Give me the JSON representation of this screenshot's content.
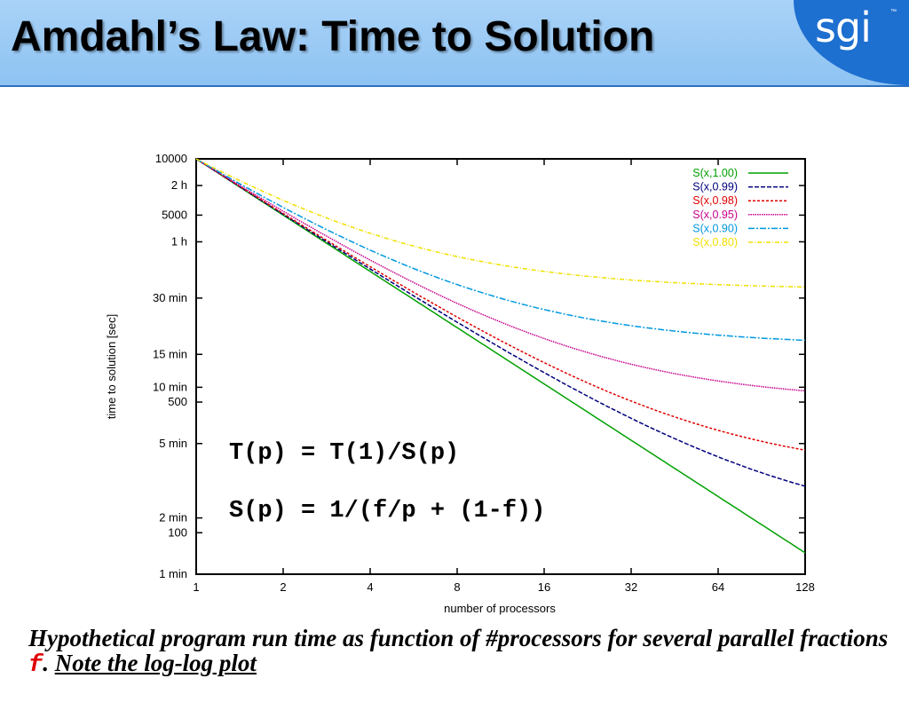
{
  "slide": {
    "title": "Amdahl’s Law: Time to Solution",
    "logo": "sgi",
    "logo_tm": "™"
  },
  "chart_data": {
    "type": "line",
    "xscale": "log2",
    "yscale": "log",
    "xlabel": "number of processors",
    "ylabel": "time to solution [sec]",
    "xlim": [
      1,
      128
    ],
    "ylim": [
      60,
      10000
    ],
    "xticks": [
      1,
      2,
      4,
      8,
      16,
      32,
      64,
      128
    ],
    "xtick_labels": [
      "1",
      "2",
      "4",
      "8",
      "16",
      "32",
      "64",
      "128"
    ],
    "yticks": [
      {
        "value": 10000,
        "label": "10000"
      },
      {
        "value": 7200,
        "label": "2 h"
      },
      {
        "value": 5000,
        "label": "5000"
      },
      {
        "value": 3600,
        "label": "1 h"
      },
      {
        "value": 1800,
        "label": "30 min"
      },
      {
        "value": 900,
        "label": "15 min"
      },
      {
        "value": 600,
        "label": "10 min"
      },
      {
        "value": 500,
        "label": "500"
      },
      {
        "value": 300,
        "label": "5 min"
      },
      {
        "value": 120,
        "label": "2 min"
      },
      {
        "value": 100,
        "label": "100"
      },
      {
        "value": 60,
        "label": "1 min"
      }
    ],
    "t1": 10000,
    "legend_position": "top-right",
    "series": [
      {
        "name": "S(x,1.00)",
        "f": 1.0,
        "color": "#00a000",
        "dash": "",
        "values": [
          10000,
          5000,
          2500,
          1250,
          625,
          312.5,
          156.3,
          78.1
        ]
      },
      {
        "name": "S(x,0.99)",
        "f": 0.99,
        "color": "#00007f",
        "dash": "5,2",
        "values": [
          10000,
          5050,
          2575,
          1338,
          719,
          409,
          255,
          177
        ]
      },
      {
        "name": "S(x,0.98)",
        "f": 0.98,
        "color": "#e00000",
        "dash": "3,2",
        "values": [
          10000,
          5100,
          2650,
          1425,
          813,
          506,
          353,
          277
        ]
      },
      {
        "name": "S(x,0.95)",
        "f": 0.95,
        "color": "#c8008c",
        "dash": "1.5,1",
        "values": [
          10000,
          5250,
          2875,
          1688,
          1094,
          797,
          648,
          574
        ]
      },
      {
        "name": "S(x,0.90)",
        "f": 0.9,
        "color": "#0098e0",
        "dash": "7,2,2,2",
        "values": [
          10000,
          5500,
          3250,
          2125,
          1563,
          1281,
          1141,
          1070
        ]
      },
      {
        "name": "S(x,0.80)",
        "f": 0.8,
        "color": "#f0e000",
        "dash": "5,2,1,2",
        "values": [
          10000,
          6000,
          4000,
          3000,
          2500,
          2250,
          2125,
          2063
        ]
      }
    ],
    "annotations": [
      "T(p) = T(1)/S(p)",
      "S(p) = 1/(f/p + (1-f))"
    ]
  },
  "caption": {
    "text": "Hypothetical program run time as function of #processors for several parallel fractions ",
    "variable": "f",
    "sep": ". ",
    "note": "Note the log-log plot"
  }
}
